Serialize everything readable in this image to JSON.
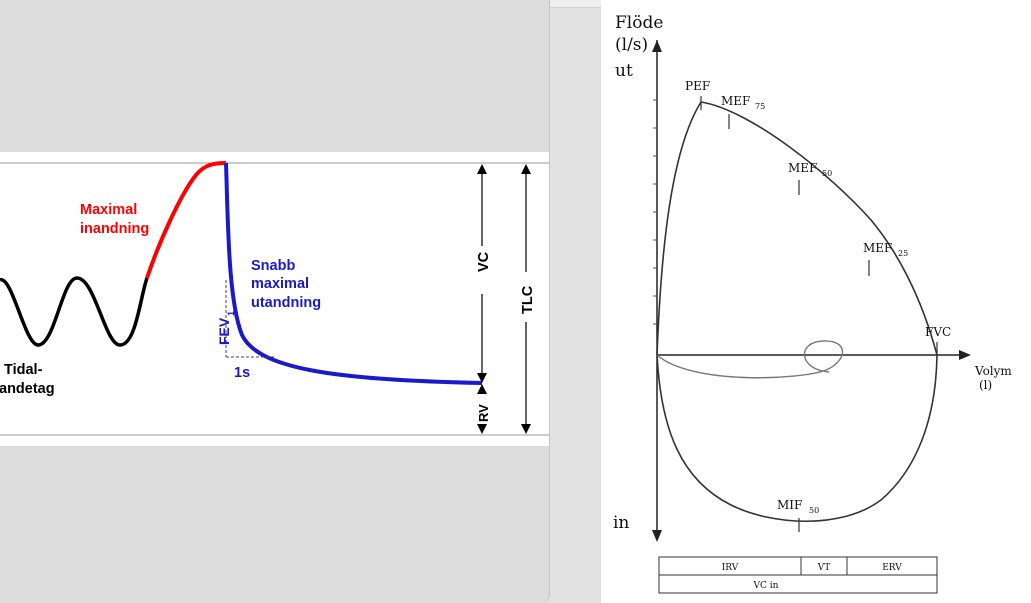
{
  "spirometry": {
    "label_maximal_inhale_1": "Maximal",
    "label_maximal_inhale_2": "inandning",
    "label_fast_exhale_1": "Snabb",
    "label_fast_exhale_2": "maximal",
    "label_fast_exhale_3": "utandning",
    "label_tidal_1": "Tidal-",
    "label_tidal_2": "andetag",
    "label_fev": "FEV",
    "label_fev_sub": "1",
    "label_1s": "1s",
    "label_vc": "VC",
    "label_tlc": "TLC",
    "label_rv": "RV",
    "colors": {
      "inhale": "#ff0000",
      "exhale": "#1a1acc",
      "tidal": "#000000"
    }
  },
  "flow_volume": {
    "y_axis_title_1": "Flöde",
    "y_axis_title_2": "(l/s)",
    "label_out": "ut",
    "label_in": "in",
    "x_axis_title_1": "Volym",
    "x_axis_title_2": "(l)",
    "label_pef": "PEF",
    "label_mef75": "MEF",
    "label_mef75_sub": "75",
    "label_mef50": "MEF",
    "label_mef50_sub": "50",
    "label_mef25": "MEF",
    "label_mef25_sub": "25",
    "label_fvc": "FVC",
    "label_mif50": "MIF",
    "label_mif50_sub": "50",
    "table": {
      "irv": "IRV",
      "vt": "VT",
      "erv": "ERV",
      "vc_in": "VC in"
    }
  }
}
